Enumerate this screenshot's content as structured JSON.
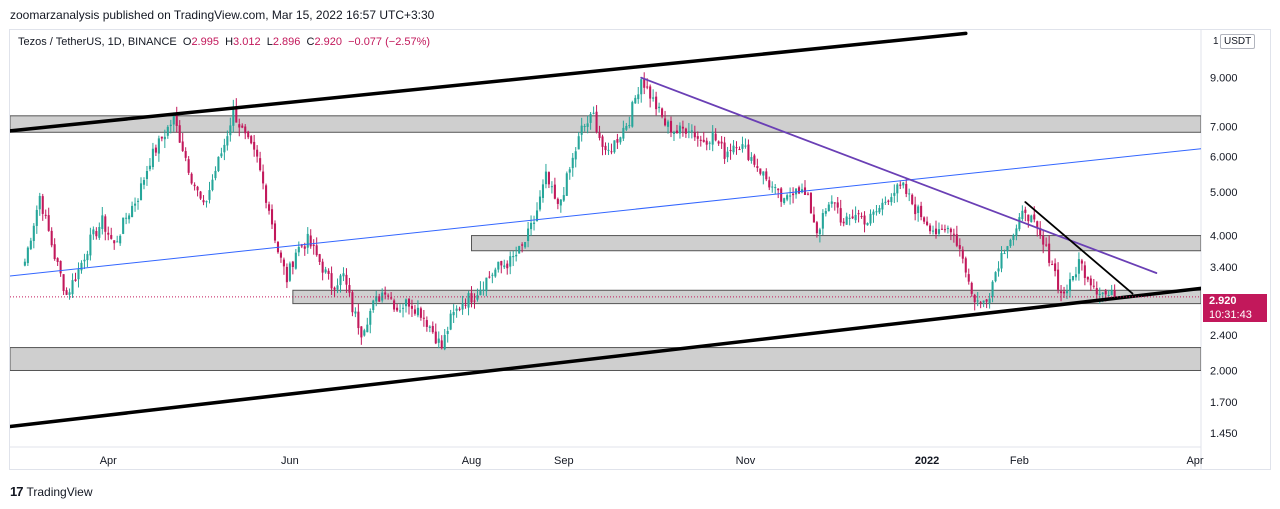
{
  "header": {
    "publish_line": "zoomarzanalysis published on TradingView.com, Mar 15, 2022 16:57 UTC+3:30"
  },
  "legend": {
    "symbol": "Tezos / TetherUS, 1D, BINANCE",
    "open_label": "O",
    "open": "2.995",
    "high_label": "H",
    "high": "3.012",
    "low_label": "L",
    "low": "2.896",
    "close_label": "C",
    "close": "2.920",
    "change": "−0.077 (−2.57%)"
  },
  "price_axis": {
    "currency": "USDT",
    "scale_marker": "1",
    "ticks": [
      "9.000",
      "7.000",
      "6.000",
      "5.000",
      "4.000",
      "3.400",
      "2.400",
      "2.000",
      "1.700",
      "1.450"
    ],
    "tick_values": [
      9.0,
      7.0,
      6.0,
      5.0,
      4.0,
      3.4,
      2.4,
      2.0,
      1.7,
      1.45
    ]
  },
  "current_price": {
    "value": "2.920",
    "countdown": "10:31:43"
  },
  "footer": {
    "brand": "TradingView"
  },
  "colors": {
    "up": "#26a69a",
    "down": "#c2185b",
    "zone_fill": "#cfcfcf",
    "channel": "#000000",
    "midline": "#3366ff",
    "resistance": "#6a3fb5",
    "accent": "#c2185b"
  },
  "chart_data": {
    "type": "candlestick",
    "title": "Tezos / TetherUS, 1D, BINANCE",
    "scale": "log",
    "ylim": [
      1.35,
      11.5
    ],
    "x_range_days": [
      -5,
      395
    ],
    "x_ticks": [
      {
        "label": "Apr",
        "day": 28
      },
      {
        "label": "Jun",
        "day": 89
      },
      {
        "label": "Aug",
        "day": 150
      },
      {
        "label": "Sep",
        "day": 181
      },
      {
        "label": "Nov",
        "day": 242
      },
      {
        "label": "2022",
        "day": 303
      },
      {
        "label": "Feb",
        "day": 334
      },
      {
        "label": "Apr",
        "day": 393
      }
    ],
    "close_path": [
      [
        0,
        3.5
      ],
      [
        5,
        4.9
      ],
      [
        10,
        3.6
      ],
      [
        14,
        2.95
      ],
      [
        18,
        3.35
      ],
      [
        22,
        3.9
      ],
      [
        26,
        4.3
      ],
      [
        30,
        3.8
      ],
      [
        34,
        4.4
      ],
      [
        38,
        4.9
      ],
      [
        42,
        5.9
      ],
      [
        46,
        6.6
      ],
      [
        50,
        7.3
      ],
      [
        53,
        6.3
      ],
      [
        56,
        5.4
      ],
      [
        60,
        4.6
      ],
      [
        64,
        5.6
      ],
      [
        67,
        6.4
      ],
      [
        70,
        7.6
      ],
      [
        74,
        6.6
      ],
      [
        78,
        5.9
      ],
      [
        82,
        4.6
      ],
      [
        85,
        3.7
      ],
      [
        88,
        3.2
      ],
      [
        91,
        3.7
      ],
      [
        95,
        3.9
      ],
      [
        99,
        3.5
      ],
      [
        103,
        3.1
      ],
      [
        107,
        3.25
      ],
      [
        110,
        2.75
      ],
      [
        113,
        2.45
      ],
      [
        117,
        2.8
      ],
      [
        121,
        3.05
      ],
      [
        125,
        2.75
      ],
      [
        129,
        2.85
      ],
      [
        133,
        2.7
      ],
      [
        137,
        2.45
      ],
      [
        140,
        2.25
      ],
      [
        143,
        2.6
      ],
      [
        147,
        2.85
      ],
      [
        151,
        2.95
      ],
      [
        155,
        3.2
      ],
      [
        159,
        3.4
      ],
      [
        163,
        3.5
      ],
      [
        167,
        3.75
      ],
      [
        171,
        4.3
      ],
      [
        175,
        5.4
      ],
      [
        179,
        4.6
      ],
      [
        183,
        5.6
      ],
      [
        187,
        6.9
      ],
      [
        191,
        7.4
      ],
      [
        195,
        6.0
      ],
      [
        199,
        6.6
      ],
      [
        203,
        7.3
      ],
      [
        207,
        9.0
      ],
      [
        211,
        8.0
      ],
      [
        215,
        7.1
      ],
      [
        219,
        6.8
      ],
      [
        223,
        7.0
      ],
      [
        227,
        6.5
      ],
      [
        231,
        6.7
      ],
      [
        235,
        6.1
      ],
      [
        239,
        6.5
      ],
      [
        243,
        6.1
      ],
      [
        247,
        5.6
      ],
      [
        251,
        5.1
      ],
      [
        255,
        4.7
      ],
      [
        259,
        5.2
      ],
      [
        263,
        4.8
      ],
      [
        266,
        4.1
      ],
      [
        269,
        4.5
      ],
      [
        272,
        4.8
      ],
      [
        275,
        4.2
      ],
      [
        279,
        4.5
      ],
      [
        283,
        4.3
      ],
      [
        287,
        4.6
      ],
      [
        291,
        5.0
      ],
      [
        295,
        5.1
      ],
      [
        299,
        4.6
      ],
      [
        303,
        4.3
      ],
      [
        307,
        4.0
      ],
      [
        311,
        4.2
      ],
      [
        315,
        3.6
      ],
      [
        318,
        2.95
      ],
      [
        321,
        2.8
      ],
      [
        324,
        3.0
      ],
      [
        327,
        3.5
      ],
      [
        330,
        3.9
      ],
      [
        333,
        4.1
      ],
      [
        336,
        4.6
      ],
      [
        339,
        4.2
      ],
      [
        342,
        3.8
      ],
      [
        345,
        3.5
      ],
      [
        348,
        2.95
      ],
      [
        351,
        3.1
      ],
      [
        354,
        3.5
      ],
      [
        357,
        3.25
      ],
      [
        360,
        3.05
      ],
      [
        363,
        2.95
      ],
      [
        366,
        2.92
      ]
    ],
    "horizontal_zones": [
      {
        "low": 6.8,
        "high": 7.4,
        "start_day": -5
      },
      {
        "low": 3.7,
        "high": 4.0,
        "start_day": 150
      },
      {
        "low": 2.82,
        "high": 3.02,
        "start_day": 90
      },
      {
        "low": 2.0,
        "high": 2.25,
        "start_day": -5
      }
    ],
    "trendlines": [
      {
        "name": "channel-upper",
        "from": [
          -5,
          6.85
        ],
        "to": [
          316,
          11.3
        ]
      },
      {
        "name": "channel-lower",
        "from": [
          -5,
          1.5
        ],
        "to": [
          395,
          3.05
        ]
      },
      {
        "name": "channel-midline",
        "from": [
          -5,
          3.25
        ],
        "to": [
          395,
          6.25
        ]
      },
      {
        "name": "resistance-purple",
        "from": [
          207,
          9.0
        ],
        "to": [
          380,
          3.3
        ]
      },
      {
        "name": "resistance-black",
        "from": [
          336,
          4.75
        ],
        "to": [
          372,
          2.97
        ]
      }
    ]
  }
}
